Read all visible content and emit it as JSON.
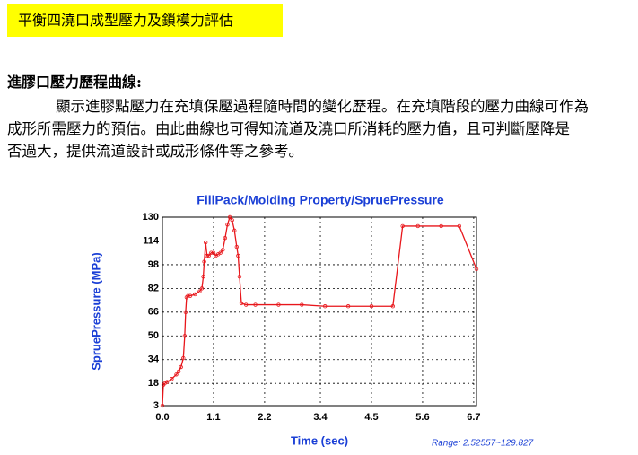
{
  "header": {
    "title": "平衡四澆口成型壓力及鎖模力評估"
  },
  "section": {
    "heading": "進膠口壓力歷程曲線:",
    "lines": [
      "顯示進膠點壓力在充填保壓過程隨時間的變化歷程。在充填階段的壓力曲線可作為",
      "成形所需壓力的預估。由此曲線也可得知流道及澆口所消耗的壓力值，且可判斷壓降是",
      "否過大，提供流道設計或成形條件等之參考。"
    ]
  },
  "chart_data": {
    "type": "line",
    "title": "FillPack/Molding Property/SpruePressure",
    "xlabel": "Time (sec)",
    "ylabel": "SpruePressure (MPa)",
    "annotation": "Range: 2.52557~129.827",
    "color": "#e8161b",
    "grid": true,
    "xlim": [
      0,
      6.76
    ],
    "ylim": [
      3,
      130
    ],
    "xticks": [
      {
        "value": 0,
        "label": "0.0"
      },
      1.1,
      2.2,
      3.4,
      4.5,
      5.6,
      6.7
    ],
    "yticks": [
      3,
      18,
      34,
      50,
      66,
      82,
      98,
      114,
      130
    ],
    "x": [
      0,
      0.02,
      0.05,
      0.1,
      0.2,
      0.3,
      0.35,
      0.4,
      0.45,
      0.48,
      0.5,
      0.52,
      0.55,
      0.6,
      0.7,
      0.8,
      0.85,
      0.88,
      0.9,
      0.93,
      0.96,
      1.0,
      1.05,
      1.1,
      1.15,
      1.2,
      1.25,
      1.3,
      1.35,
      1.4,
      1.45,
      1.5,
      1.55,
      1.6,
      1.63,
      1.66,
      1.7,
      1.8,
      2.0,
      2.5,
      3.0,
      3.5,
      4.0,
      4.5,
      4.96,
      5.17,
      5.5,
      6.0,
      6.39,
      6.76
    ],
    "values": [
      3,
      17,
      18,
      19,
      21,
      24,
      26,
      29,
      35,
      50,
      66,
      76,
      77,
      77,
      78,
      80,
      82,
      90,
      100,
      113,
      104,
      104,
      106,
      106,
      104,
      105,
      106,
      108,
      116,
      125,
      130,
      128,
      121,
      110,
      104,
      90,
      72,
      71,
      71,
      71,
      71,
      70,
      70,
      70,
      70,
      124,
      124,
      124,
      124,
      95
    ]
  }
}
